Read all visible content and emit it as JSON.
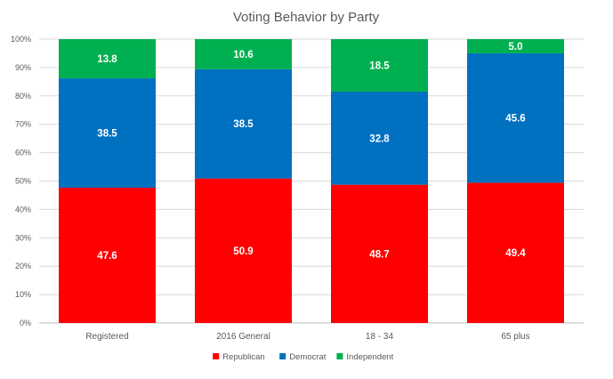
{
  "chart_data": {
    "type": "bar",
    "stacked": true,
    "percent_stacked": true,
    "title": "Voting Behavior by Party",
    "xlabel": "",
    "ylabel": "",
    "ylim": [
      0,
      100
    ],
    "yticks": [
      "0%",
      "10%",
      "20%",
      "30%",
      "40%",
      "50%",
      "60%",
      "70%",
      "80%",
      "90%",
      "100%"
    ],
    "categories": [
      "Registered",
      "2016 General",
      "18 - 34",
      "65 plus"
    ],
    "series": [
      {
        "name": "Republican",
        "color": "#ff0000",
        "values": [
          47.6,
          50.9,
          48.7,
          49.4
        ],
        "labels": [
          "47.6",
          "50.9",
          "48.7",
          "49.4"
        ]
      },
      {
        "name": "Democrat",
        "color": "#0070c0",
        "values": [
          38.5,
          38.5,
          32.8,
          45.6
        ],
        "labels": [
          "38.5",
          "38.5",
          "32.8",
          "45.6"
        ]
      },
      {
        "name": "Independent",
        "color": "#00b050",
        "values": [
          13.8,
          10.6,
          18.5,
          5.0
        ],
        "labels": [
          "13.8",
          "10.6",
          "18.5",
          "5.0"
        ]
      }
    ],
    "legend_position": "bottom",
    "grid": true
  }
}
